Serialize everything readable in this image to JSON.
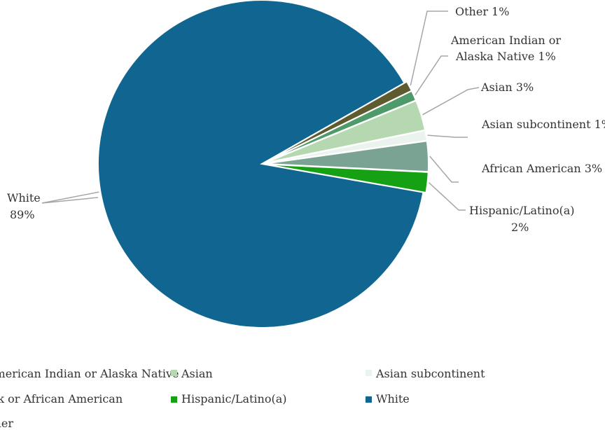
{
  "chart_data": {
    "type": "pie",
    "title": "",
    "legend_position": "bottom",
    "slices": [
      {
        "name": "Other",
        "value": 1,
        "color": "#5e5b2e",
        "label": "Other 1%"
      },
      {
        "name": "American Indian or Alaska Native",
        "value": 1,
        "color": "#4f9a6b",
        "label_lines": [
          "American Indian or",
          "Alaska Native 1%"
        ]
      },
      {
        "name": "Asian",
        "value": 3,
        "color": "#b5d8b0",
        "label": "Asian 3%"
      },
      {
        "name": "Asian subcontinent",
        "value": 1,
        "color": "#eaf3ee",
        "label": "Asian subcontinent 1%"
      },
      {
        "name": "Black or African American",
        "value": 3,
        "color": "#7ba394",
        "label": "African American 3%"
      },
      {
        "name": "Hispanic/Latino(a)",
        "value": 2,
        "color": "#16a013",
        "label_lines": [
          "Hispanic/Latino(a)",
          "2%"
        ]
      },
      {
        "name": "White",
        "value": 89,
        "color": "#106690",
        "label_lines": [
          "White",
          "89%"
        ]
      }
    ],
    "legend": [
      {
        "label": "American Indian or Alaska Native",
        "color": "#4f9a6b"
      },
      {
        "label": "Asian",
        "color": "#b5d8b0"
      },
      {
        "label": "Asian subcontinent",
        "color": "#eaf3ee"
      },
      {
        "label": "Black or African American",
        "color": "#7ba394"
      },
      {
        "label": "Hispanic/Latino(a)",
        "color": "#16a013"
      },
      {
        "label": "White",
        "color": "#106690"
      },
      {
        "label": "Other",
        "color": "#5e5b2e"
      }
    ]
  }
}
